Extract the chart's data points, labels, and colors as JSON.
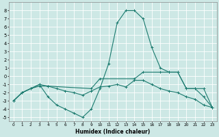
{
  "xlabel": "Humidex (Indice chaleur)",
  "bg_color": "#cde8e5",
  "grid_color": "#ffffff",
  "line_color": "#1a7a6e",
  "xlim": [
    -0.5,
    23.5
  ],
  "ylim": [
    -5.5,
    9.0
  ],
  "x_ticks": [
    0,
    1,
    2,
    3,
    4,
    5,
    6,
    7,
    8,
    9,
    10,
    11,
    12,
    13,
    14,
    15,
    16,
    17,
    18,
    19,
    20,
    21,
    22,
    23
  ],
  "y_ticks": [
    -5,
    -4,
    -3,
    -2,
    -1,
    0,
    1,
    2,
    3,
    4,
    5,
    6,
    7,
    8
  ],
  "line1_x": [
    0,
    1,
    2,
    3,
    4,
    5,
    6,
    7,
    8,
    9,
    10,
    11,
    12,
    13,
    14,
    15,
    16,
    17,
    18,
    19,
    20,
    21,
    22,
    23
  ],
  "line1_y": [
    -3,
    -2,
    -1.5,
    -1,
    -2.5,
    -3.5,
    -4,
    -4.5,
    -5,
    -4,
    -1.5,
    1.5,
    6.5,
    8,
    8,
    7,
    3.5,
    1,
    0.5,
    0.5,
    -1.5,
    -1.5,
    -2.5,
    -3.8
  ],
  "line2_x": [
    0,
    1,
    2,
    3,
    4,
    5,
    6,
    7,
    8,
    9,
    10,
    11,
    12,
    13,
    14,
    15,
    16,
    17,
    18,
    19,
    20,
    21,
    22,
    23
  ],
  "line2_y": [
    -3,
    -2,
    -1.5,
    -1.2,
    -1.2,
    -1.5,
    -1.8,
    -2.0,
    -2.3,
    -1.8,
    -1.3,
    -1.2,
    -1.0,
    -1.3,
    -0.5,
    -0.5,
    -1.0,
    -1.5,
    -1.8,
    -2.0,
    -2.5,
    -2.8,
    -3.5,
    -3.8
  ],
  "line3_x": [
    0,
    1,
    2,
    3,
    4,
    9,
    10,
    14,
    15,
    17,
    18,
    19,
    20,
    21,
    22,
    23
  ],
  "line3_y": [
    -3,
    -2,
    -1.5,
    -1.0,
    -1.2,
    -1.5,
    -0.3,
    -0.3,
    0.5,
    0.5,
    0.5,
    0.5,
    -1.5,
    -1.5,
    -1.5,
    -3.8
  ]
}
